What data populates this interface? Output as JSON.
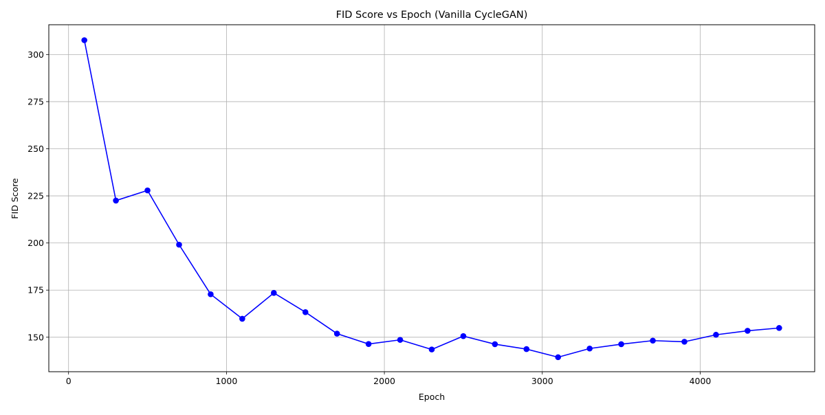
{
  "chart_data": {
    "type": "line",
    "title": "FID Score vs Epoch (Vanilla CycleGAN)",
    "xlabel": "Epoch",
    "ylabel": "FID Score",
    "xlim": [
      -125,
      4725
    ],
    "ylim": [
      131.7,
      315.8
    ],
    "xticks": [
      0,
      1000,
      2000,
      3000,
      4000
    ],
    "yticks": [
      150,
      175,
      200,
      225,
      250,
      275,
      300
    ],
    "grid": true,
    "colors": {
      "line": "#0000ff",
      "marker": "#0000ff",
      "grid": "#b0b0b0"
    },
    "series": [
      {
        "x": [
          100,
          300,
          500,
          700,
          900,
          1100,
          1300,
          1500,
          1700,
          1900,
          2100,
          2300,
          2500,
          2700,
          2900,
          3100,
          3300,
          3500,
          3700,
          3900,
          4100,
          4300,
          4500
        ],
        "values": [
          307.6,
          222.5,
          227.9,
          199.1,
          172.8,
          159.8,
          173.5,
          163.3,
          151.9,
          146.4,
          148.6,
          143.5,
          150.6,
          146.3,
          143.7,
          139.4,
          144.0,
          146.3,
          148.2,
          147.6,
          151.3,
          153.4,
          154.9
        ]
      }
    ]
  }
}
